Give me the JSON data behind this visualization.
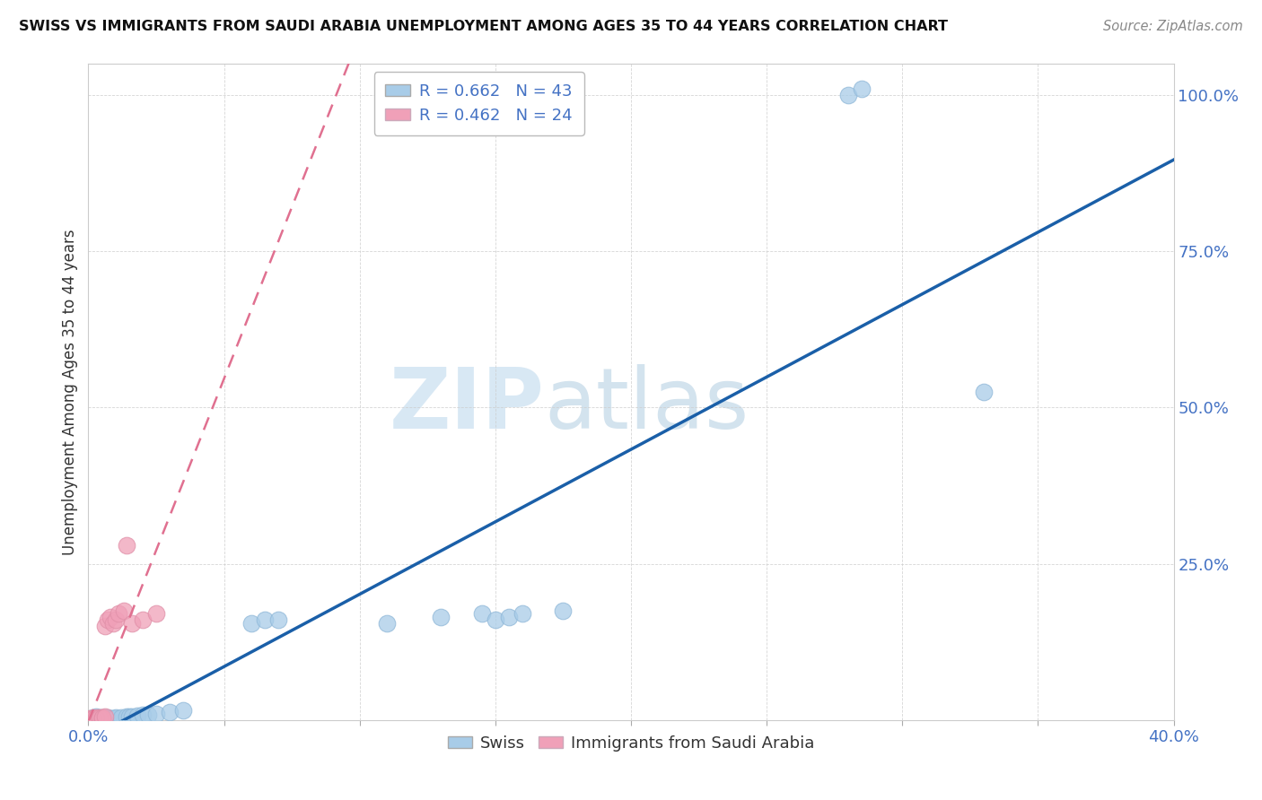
{
  "title": "SWISS VS IMMIGRANTS FROM SAUDI ARABIA UNEMPLOYMENT AMONG AGES 35 TO 44 YEARS CORRELATION CHART",
  "source": "Source: ZipAtlas.com",
  "ylabel": "Unemployment Among Ages 35 to 44 years",
  "xlim": [
    0.0,
    0.4
  ],
  "ylim": [
    0.0,
    1.05
  ],
  "legend_swiss": "R = 0.662   N = 43",
  "legend_saudi": "R = 0.462   N = 24",
  "swiss_color": "#a8cce8",
  "saudi_color": "#f0a0b8",
  "swiss_line_color": "#1a5fa8",
  "saudi_line_color": "#e07090",
  "watermark_zip": "ZIP",
  "watermark_atlas": "atlas",
  "swiss_x": [
    0.001,
    0.002,
    0.002,
    0.003,
    0.003,
    0.003,
    0.004,
    0.004,
    0.004,
    0.005,
    0.005,
    0.005,
    0.006,
    0.006,
    0.007,
    0.007,
    0.008,
    0.009,
    0.01,
    0.01,
    0.012,
    0.014,
    0.015,
    0.016,
    0.018,
    0.02,
    0.022,
    0.025,
    0.03,
    0.035,
    0.06,
    0.065,
    0.07,
    0.11,
    0.13,
    0.145,
    0.15,
    0.155,
    0.16,
    0.175,
    0.28,
    0.285,
    0.33
  ],
  "swiss_y": [
    0.003,
    0.002,
    0.004,
    0.002,
    0.003,
    0.005,
    0.002,
    0.003,
    0.004,
    0.002,
    0.003,
    0.004,
    0.003,
    0.004,
    0.003,
    0.004,
    0.003,
    0.003,
    0.003,
    0.004,
    0.004,
    0.005,
    0.005,
    0.006,
    0.007,
    0.008,
    0.008,
    0.01,
    0.012,
    0.015,
    0.155,
    0.16,
    0.16,
    0.155,
    0.165,
    0.17,
    0.16,
    0.165,
    0.17,
    0.175,
    1.0,
    1.01,
    0.525
  ],
  "saudi_x": [
    0.001,
    0.001,
    0.002,
    0.002,
    0.003,
    0.003,
    0.003,
    0.004,
    0.004,
    0.005,
    0.005,
    0.005,
    0.006,
    0.006,
    0.007,
    0.008,
    0.009,
    0.01,
    0.011,
    0.013,
    0.014,
    0.016,
    0.02,
    0.025
  ],
  "saudi_y": [
    0.002,
    0.003,
    0.002,
    0.003,
    0.002,
    0.003,
    0.004,
    0.003,
    0.004,
    0.002,
    0.003,
    0.004,
    0.005,
    0.15,
    0.16,
    0.165,
    0.155,
    0.16,
    0.17,
    0.175,
    0.28,
    0.155,
    0.16,
    0.17
  ]
}
